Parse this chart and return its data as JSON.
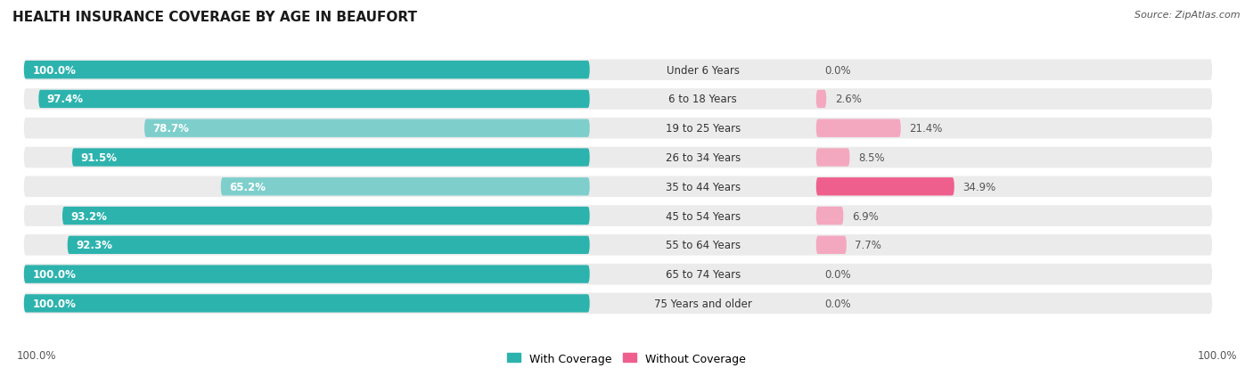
{
  "title": "HEALTH INSURANCE COVERAGE BY AGE IN BEAUFORT",
  "source": "Source: ZipAtlas.com",
  "categories": [
    "Under 6 Years",
    "6 to 18 Years",
    "19 to 25 Years",
    "26 to 34 Years",
    "35 to 44 Years",
    "45 to 54 Years",
    "55 to 64 Years",
    "65 to 74 Years",
    "75 Years and older"
  ],
  "with_coverage": [
    100.0,
    97.4,
    78.7,
    91.5,
    65.2,
    93.2,
    92.3,
    100.0,
    100.0
  ],
  "without_coverage": [
    0.0,
    2.6,
    21.4,
    8.5,
    34.9,
    6.9,
    7.7,
    0.0,
    0.0
  ],
  "color_with_dark": "#2db3ae",
  "color_with_light": "#7ecfcc",
  "color_without_dark": "#ef5f8e",
  "color_without_light": "#f4a8c0",
  "color_bg_bar": "#ebebeb",
  "color_bg": "#ffffff",
  "with_colors_idx": [
    0,
    0,
    1,
    0,
    1,
    0,
    0,
    0,
    0
  ],
  "without_colors_idx": [
    0,
    0,
    0,
    0,
    1,
    0,
    0,
    0,
    0
  ],
  "axis_label_left": "100.0%",
  "axis_label_right": "100.0%",
  "legend_with": "With Coverage",
  "legend_without": "Without Coverage",
  "title_fontsize": 11,
  "source_fontsize": 8,
  "label_fontsize": 8.5,
  "category_fontsize": 8.5
}
